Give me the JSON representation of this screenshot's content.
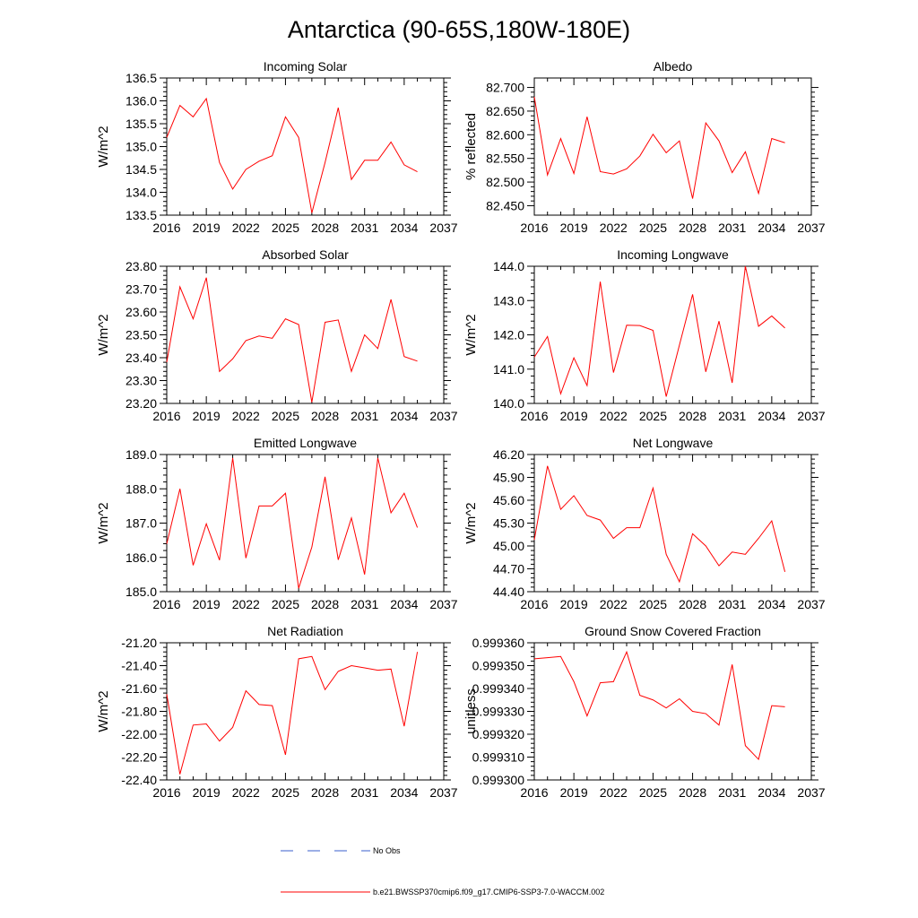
{
  "title": "Antarctica (90-65S,180W-180E)",
  "colors": {
    "model": "#ff0000",
    "obs": "#3a5fcd"
  },
  "legend": {
    "obs_label": "No Obs",
    "model_label": "b.e21.BWSSP370cmip6.f09_g17.CMIP6-SSP3-7.0-WACCM.002"
  },
  "chart_data": [
    {
      "type": "line",
      "title": "Incoming Solar",
      "ylabel": "W/m^2",
      "xlim": [
        2016,
        2037
      ],
      "ylim": [
        133.5,
        136.5
      ],
      "xticks": [
        "2016",
        "2019",
        "2022",
        "2025",
        "2028",
        "2031",
        "2034",
        "2037"
      ],
      "yticks": [
        "133.5",
        "134.0",
        "134.5",
        "135.0",
        "135.5",
        "136.0",
        "136.5"
      ],
      "x": [
        2016,
        2017,
        2018,
        2019,
        2020,
        2021,
        2022,
        2023,
        2024,
        2025,
        2026,
        2027,
        2028,
        2029,
        2030,
        2031,
        2032,
        2033,
        2034,
        2035
      ],
      "series": [
        {
          "name": "b.e21.BWSSP370cmip6.f09_g17.CMIP6-SSP3-7.0-WACCM.002",
          "values": [
            135.2,
            135.9,
            135.65,
            136.05,
            134.65,
            134.07,
            134.5,
            134.68,
            134.8,
            135.65,
            135.2,
            133.55,
            134.65,
            135.85,
            134.28,
            134.7,
            134.7,
            135.1,
            134.6,
            134.45
          ]
        }
      ]
    },
    {
      "type": "line",
      "title": "Albedo",
      "ylabel": "% reflected",
      "xlim": [
        2016,
        2037
      ],
      "ylim": [
        82.43,
        82.72
      ],
      "xticks": [
        "2016",
        "2019",
        "2022",
        "2025",
        "2028",
        "2031",
        "2034",
        "2037"
      ],
      "yticks": [
        "82.450",
        "82.500",
        "82.550",
        "82.600",
        "82.650",
        "82.700"
      ],
      "x": [
        2016,
        2017,
        2018,
        2019,
        2020,
        2021,
        2022,
        2023,
        2024,
        2025,
        2026,
        2027,
        2028,
        2029,
        2030,
        2031,
        2032,
        2033,
        2034,
        2035
      ],
      "series": [
        {
          "name": "b.e21.BWSSP370cmip6.f09_g17.CMIP6-SSP3-7.0-WACCM.002",
          "values": [
            82.68,
            82.515,
            82.592,
            82.518,
            82.638,
            82.522,
            82.517,
            82.528,
            82.555,
            82.601,
            82.562,
            82.587,
            82.465,
            82.625,
            82.587,
            82.52,
            82.564,
            82.476,
            82.592,
            82.583
          ]
        }
      ]
    },
    {
      "type": "line",
      "title": "Absorbed Solar",
      "ylabel": "W/m^2",
      "xlim": [
        2016,
        2037
      ],
      "ylim": [
        23.2,
        23.8
      ],
      "xticks": [
        "2016",
        "2019",
        "2022",
        "2025",
        "2028",
        "2031",
        "2034",
        "2037"
      ],
      "yticks": [
        "23.20",
        "23.30",
        "23.40",
        "23.50",
        "23.60",
        "23.70",
        "23.80"
      ],
      "x": [
        2016,
        2017,
        2018,
        2019,
        2020,
        2021,
        2022,
        2023,
        2024,
        2025,
        2026,
        2027,
        2028,
        2029,
        2030,
        2031,
        2032,
        2033,
        2034,
        2035
      ],
      "series": [
        {
          "name": "b.e21.BWSSP370cmip6.f09_g17.CMIP6-SSP3-7.0-WACCM.002",
          "values": [
            23.38,
            23.71,
            23.57,
            23.75,
            23.34,
            23.395,
            23.475,
            23.495,
            23.485,
            23.57,
            23.545,
            23.205,
            23.555,
            23.565,
            23.34,
            23.5,
            23.44,
            23.655,
            23.405,
            23.385
          ]
        }
      ]
    },
    {
      "type": "line",
      "title": "Incoming Longwave",
      "ylabel": "W/m^2",
      "xlim": [
        2016,
        2037
      ],
      "ylim": [
        140.0,
        144.0
      ],
      "xticks": [
        "2016",
        "2019",
        "2022",
        "2025",
        "2028",
        "2031",
        "2034",
        "2037"
      ],
      "yticks": [
        "140.0",
        "141.0",
        "142.0",
        "143.0",
        "144.0"
      ],
      "x": [
        2016,
        2017,
        2018,
        2019,
        2020,
        2021,
        2022,
        2023,
        2024,
        2025,
        2026,
        2027,
        2028,
        2029,
        2030,
        2031,
        2032,
        2033,
        2034,
        2035
      ],
      "series": [
        {
          "name": "b.e21.BWSSP370cmip6.f09_g17.CMIP6-SSP3-7.0-WACCM.002",
          "values": [
            141.35,
            141.95,
            140.28,
            141.33,
            140.52,
            143.55,
            140.9,
            142.28,
            142.27,
            142.13,
            140.2,
            141.7,
            143.18,
            140.92,
            142.4,
            140.6,
            144.0,
            142.25,
            142.55,
            142.2
          ]
        }
      ]
    },
    {
      "type": "line",
      "title": "Emitted Longwave",
      "ylabel": "W/m^2",
      "xlim": [
        2016,
        2037
      ],
      "ylim": [
        185.0,
        189.0
      ],
      "xticks": [
        "2016",
        "2019",
        "2022",
        "2025",
        "2028",
        "2031",
        "2034",
        "2037"
      ],
      "yticks": [
        "185.0",
        "186.0",
        "187.0",
        "188.0",
        "189.0"
      ],
      "x": [
        2016,
        2017,
        2018,
        2019,
        2020,
        2021,
        2022,
        2023,
        2024,
        2025,
        2026,
        2027,
        2028,
        2029,
        2030,
        2031,
        2032,
        2033,
        2034,
        2035
      ],
      "series": [
        {
          "name": "b.e21.BWSSP370cmip6.f09_g17.CMIP6-SSP3-7.0-WACCM.002",
          "values": [
            186.4,
            188.0,
            185.77,
            186.98,
            185.92,
            188.9,
            185.98,
            187.5,
            187.5,
            187.87,
            185.1,
            186.3,
            188.35,
            185.93,
            187.15,
            185.5,
            188.9,
            187.3,
            187.87,
            186.87
          ]
        }
      ]
    },
    {
      "type": "line",
      "title": "Net Longwave",
      "ylabel": "W/m^2",
      "xlim": [
        2016,
        2037
      ],
      "ylim": [
        44.4,
        46.2
      ],
      "xticks": [
        "2016",
        "2019",
        "2022",
        "2025",
        "2028",
        "2031",
        "2034",
        "2037"
      ],
      "yticks": [
        "44.40",
        "44.70",
        "45.00",
        "45.30",
        "45.60",
        "45.90",
        "46.20"
      ],
      "x": [
        2016,
        2017,
        2018,
        2019,
        2020,
        2021,
        2022,
        2023,
        2024,
        2025,
        2026,
        2027,
        2028,
        2029,
        2030,
        2031,
        2032,
        2033,
        2034,
        2035
      ],
      "series": [
        {
          "name": "b.e21.BWSSP370cmip6.f09_g17.CMIP6-SSP3-7.0-WACCM.002",
          "values": [
            45.08,
            46.05,
            45.48,
            45.66,
            45.4,
            45.34,
            45.1,
            45.24,
            45.24,
            45.76,
            44.89,
            44.53,
            45.16,
            45.0,
            44.74,
            44.92,
            44.89,
            45.1,
            45.33,
            44.66
          ]
        }
      ]
    },
    {
      "type": "line",
      "title": "Net Radiation",
      "ylabel": "W/m^2",
      "xlim": [
        2016,
        2037
      ],
      "ylim": [
        -22.4,
        -21.2
      ],
      "xticks": [
        "2016",
        "2019",
        "2022",
        "2025",
        "2028",
        "2031",
        "2034",
        "2037"
      ],
      "yticks": [
        "-22.40",
        "-22.20",
        "-22.00",
        "-21.80",
        "-21.60",
        "-21.40",
        "-21.20"
      ],
      "x": [
        2016,
        2017,
        2018,
        2019,
        2020,
        2021,
        2022,
        2023,
        2024,
        2025,
        2026,
        2027,
        2028,
        2029,
        2030,
        2031,
        2032,
        2033,
        2034,
        2035
      ],
      "series": [
        {
          "name": "b.e21.BWSSP370cmip6.f09_g17.CMIP6-SSP3-7.0-WACCM.002",
          "values": [
            -21.65,
            -22.35,
            -21.92,
            -21.91,
            -22.06,
            -21.94,
            -21.62,
            -21.74,
            -21.75,
            -22.18,
            -21.34,
            -21.32,
            -21.61,
            -21.45,
            -21.4,
            -21.42,
            -21.44,
            -21.43,
            -21.93,
            -21.28
          ]
        }
      ]
    },
    {
      "type": "line",
      "title": "Ground Snow Covered Fraction",
      "ylabel": "unitless",
      "xlim": [
        2016,
        2037
      ],
      "ylim": [
        0.9993,
        0.99936
      ],
      "xticks": [
        "2016",
        "2019",
        "2022",
        "2025",
        "2028",
        "2031",
        "2034",
        "2037"
      ],
      "yticks": [
        "0.999300",
        "0.999310",
        "0.999320",
        "0.999330",
        "0.999340",
        "0.999350",
        "0.999360"
      ],
      "x": [
        2016,
        2017,
        2018,
        2019,
        2020,
        2021,
        2022,
        2023,
        2024,
        2025,
        2026,
        2027,
        2028,
        2029,
        2030,
        2031,
        2032,
        2033,
        2034,
        2035
      ],
      "series": [
        {
          "name": "b.e21.BWSSP370cmip6.f09_g17.CMIP6-SSP3-7.0-WACCM.002",
          "values": [
            0.999353,
            0.9993535,
            0.999354,
            0.999343,
            0.999328,
            0.9993425,
            0.999343,
            0.999356,
            0.999337,
            0.999335,
            0.9993315,
            0.9993355,
            0.99933,
            0.999329,
            0.999324,
            0.9993505,
            0.999315,
            0.999309,
            0.9993325,
            0.999332
          ]
        }
      ]
    }
  ]
}
